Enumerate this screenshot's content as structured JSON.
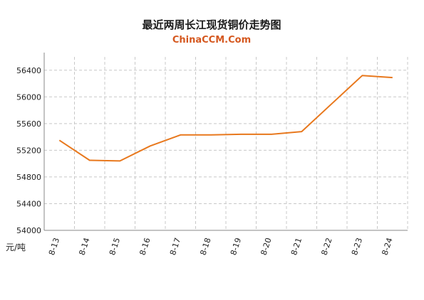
{
  "chart_data": {
    "type": "line",
    "title": "最近两周长江现货铜价走势图",
    "subtitle": "ChinaCCM.Com",
    "ylabel": "元/吨",
    "xlabel": "",
    "ylim": [
      54000,
      56600
    ],
    "yticks": [
      54000,
      54400,
      54800,
      55200,
      55600,
      56000,
      56400
    ],
    "categories": [
      "8-13",
      "8-14",
      "8-15",
      "8-16",
      "8-17",
      "8-18",
      "8-19",
      "8-20",
      "8-21",
      "8-22",
      "8-23",
      "8-24"
    ],
    "series": [
      {
        "values": [
          55350,
          55050,
          55040,
          55265,
          55430,
          55430,
          55440,
          55440,
          55480,
          55900,
          56320,
          56290
        ],
        "color": "#e8781d"
      }
    ],
    "grid": true,
    "legend": "none",
    "colors": {
      "line": "#e8781d",
      "grid": "#c8c8c8",
      "axis": "#888888",
      "subtitle": "#d5581f"
    }
  }
}
